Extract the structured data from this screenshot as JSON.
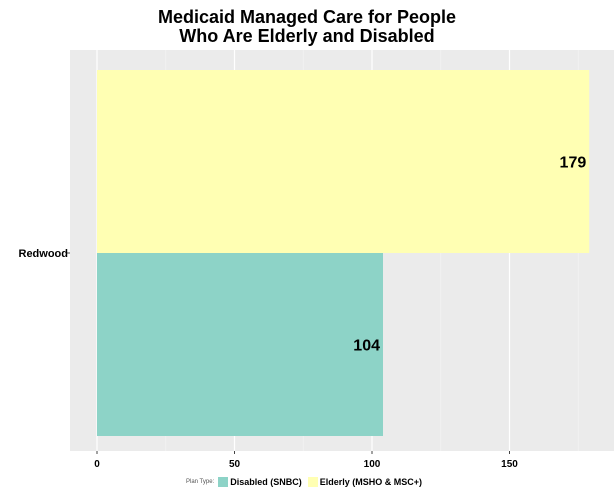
{
  "chart_data": {
    "type": "bar",
    "orientation": "horizontal",
    "title": "Medicaid Managed Care for People Who Are Elderly and Disabled",
    "title_lines": [
      "Medicaid Managed Care for People",
      "Who Are Elderly and Disabled"
    ],
    "categories": [
      "Redwood"
    ],
    "series": [
      {
        "name": "Disabled (SNBC)",
        "values": [
          104
        ],
        "color": "#8dd3c7"
      },
      {
        "name": "Elderly (MSHO & MSC+)",
        "values": [
          179
        ],
        "color": "#ffffb3"
      }
    ],
    "xlim": [
      0,
      185
    ],
    "x_ticks": [
      0,
      50,
      100,
      150
    ],
    "xlabel": "",
    "ylabel": "",
    "grid": true,
    "legend": {
      "title": "Plan Type:",
      "position": "bottom"
    }
  }
}
